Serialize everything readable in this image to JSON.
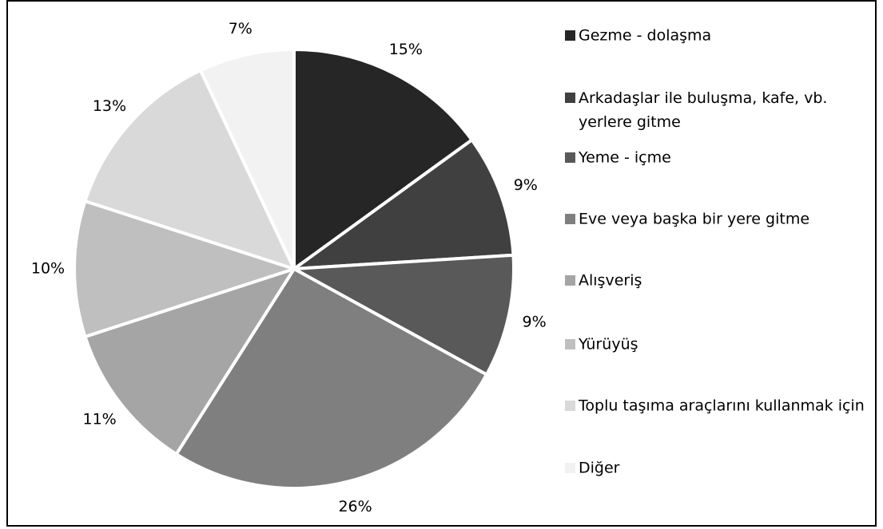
{
  "chart_data": {
    "type": "pie",
    "categories": [
      "Gezme - dolaşma",
      "Arkadaşlar ile buluşma, kafe, vb. yerlere gitme",
      "Yeme - içme",
      "Eve veya başka bir yere gitme",
      "Alışveriş",
      "Yürüyüş",
      "Toplu taşıma araçlarını kullanmak için",
      "Diğer"
    ],
    "values": [
      15,
      9,
      9,
      26,
      11,
      10,
      13,
      7
    ],
    "value_labels": [
      "15%",
      "9%",
      "9%",
      "26%",
      "11%",
      "10%",
      "13%",
      "7%"
    ],
    "colors": [
      "#262626",
      "#404040",
      "#595959",
      "#7f7f7f",
      "#a5a5a5",
      "#bfbfbf",
      "#d9d9d9",
      "#f2f2f2"
    ],
    "legend": "right"
  }
}
